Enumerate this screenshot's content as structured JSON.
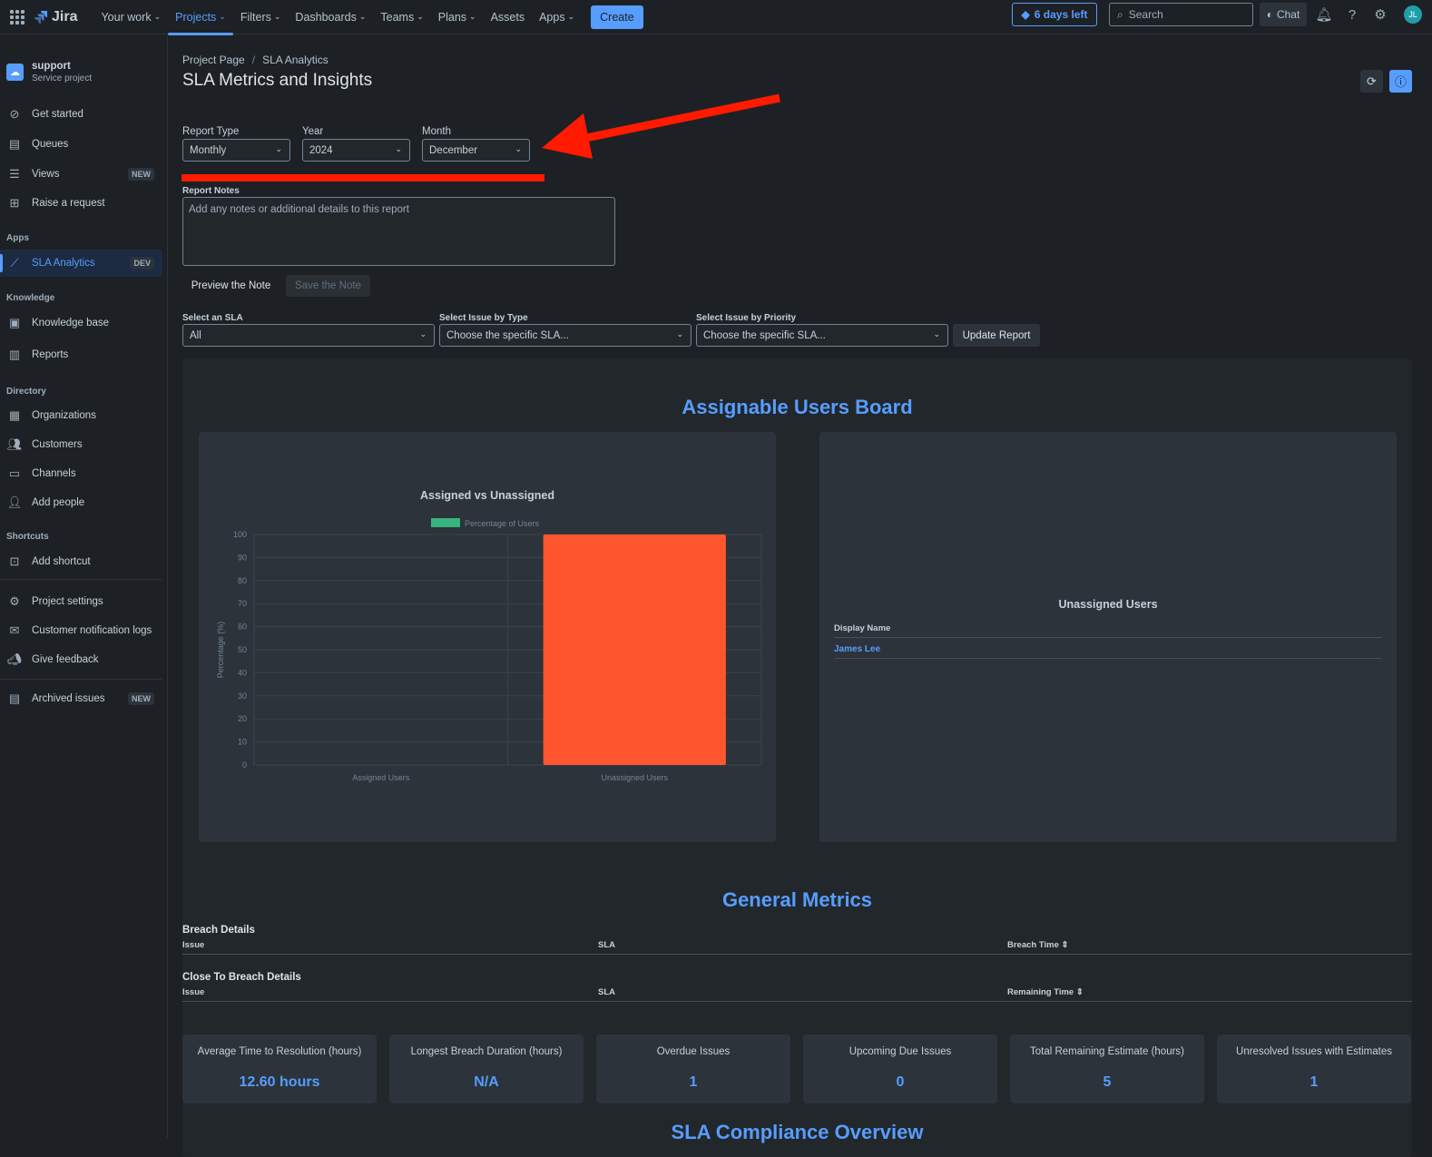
{
  "topnav": {
    "logo_text": "Jira",
    "links": [
      {
        "label": "Your work",
        "caret": true
      },
      {
        "label": "Projects",
        "caret": true,
        "active": true
      },
      {
        "label": "Filters",
        "caret": true
      },
      {
        "label": "Dashboards",
        "caret": true
      },
      {
        "label": "Teams",
        "caret": true
      },
      {
        "label": "Plans",
        "caret": true
      },
      {
        "label": "Assets",
        "caret": false
      },
      {
        "label": "Apps",
        "caret": true
      }
    ],
    "create_label": "Create",
    "trial_label": "6 days left",
    "search_placeholder": "Search",
    "chat_label": "Chat",
    "avatar_initials": "JL"
  },
  "sidebar": {
    "project_name": "support",
    "project_type": "Service project",
    "items_top": [
      {
        "label": "Get started",
        "icon": "compass-icon"
      },
      {
        "label": "Queues",
        "icon": "queue-icon"
      },
      {
        "label": "Views",
        "icon": "list-icon",
        "badge": "NEW"
      },
      {
        "label": "Raise a request",
        "icon": "plus-box-icon"
      }
    ],
    "apps_heading": "Apps",
    "apps_item": {
      "label": "SLA Analytics",
      "badge": "DEV"
    },
    "knowledge_heading": "Knowledge",
    "knowledge_items": [
      {
        "label": "Knowledge base"
      },
      {
        "label": "Reports"
      }
    ],
    "directory_heading": "Directory",
    "directory_items": [
      {
        "label": "Organizations"
      },
      {
        "label": "Customers"
      },
      {
        "label": "Channels"
      },
      {
        "label": "Add people"
      }
    ],
    "shortcuts_heading": "Shortcuts",
    "shortcut_item": {
      "label": "Add shortcut"
    },
    "bottom_items": [
      {
        "label": "Project settings"
      },
      {
        "label": "Customer notification logs"
      },
      {
        "label": "Give feedback"
      }
    ],
    "archived": {
      "label": "Archived issues",
      "badge": "NEW"
    }
  },
  "main": {
    "breadcrumb": [
      "Project Page",
      "SLA Analytics"
    ],
    "breadcrumb_sep": "/",
    "title": "SLA Metrics and Insights",
    "report_type": {
      "label": "Report Type",
      "value": "Monthly"
    },
    "year": {
      "label": "Year",
      "value": "2024"
    },
    "month": {
      "label": "Month",
      "value": "December"
    },
    "notes_label": "Report Notes",
    "notes_placeholder": "Add any notes or additional details to this report",
    "preview_label": "Preview the Note",
    "save_label": "Save the Note",
    "sla_filter": {
      "label": "Select an SLA",
      "value": "All"
    },
    "type_filter": {
      "label": "Select Issue by Type",
      "value": "Choose the specific SLA..."
    },
    "priority_filter": {
      "label": "Select Issue by Priority",
      "value": "Choose the specific SLA..."
    },
    "update_label": "Update Report",
    "board_title": "Assignable Users Board",
    "unassigned_title": "Unassigned Users",
    "unassigned_header": "Display Name",
    "unassigned_users": [
      "James Lee"
    ],
    "general_title": "General Metrics",
    "breach_title": "Breach Details",
    "breach_headers": [
      "Issue",
      "SLA",
      "Breach Time"
    ],
    "close_title": "Close To Breach Details",
    "close_headers": [
      "Issue",
      "SLA",
      "Remaining Time"
    ],
    "sort_glyph": "⇕",
    "metrics": [
      {
        "label": "Average Time to Resolution (hours)",
        "value": "12.60 hours"
      },
      {
        "label": "Longest Breach Duration (hours)",
        "value": "N/A"
      },
      {
        "label": "Overdue Issues",
        "value": "1"
      },
      {
        "label": "Upcoming Due Issues",
        "value": "0"
      },
      {
        "label": "Total Remaining Estimate (hours)",
        "value": "5"
      },
      {
        "label": "Unresolved Issues with Estimates",
        "value": "1"
      }
    ],
    "next_section_title": "SLA Compliance Overview"
  },
  "colors": {
    "accent": "#579dff",
    "bar": "#ff5630",
    "legend": "#36b37e",
    "annotation": "#ff1a00"
  },
  "chart_data": {
    "type": "bar",
    "title": "Assigned vs Unassigned",
    "categories": [
      "Assigned Users",
      "Unassigned Users"
    ],
    "series": [
      {
        "name": "Percentage of Users",
        "values": [
          0,
          100
        ]
      }
    ],
    "xlabel": "",
    "ylabel": "Percentage (%)",
    "ylim": [
      0,
      100
    ],
    "yticks": [
      0,
      10,
      20,
      30,
      40,
      50,
      60,
      70,
      80,
      90,
      100
    ],
    "grid": true,
    "legend": "top-center"
  }
}
